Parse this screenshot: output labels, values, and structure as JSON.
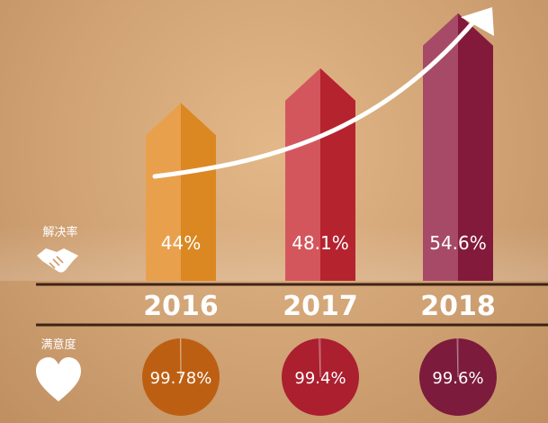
{
  "colors": {
    "divider": "#3e2416",
    "arrow": "#ffffff",
    "year_text": "#ffffff"
  },
  "icons": {
    "resolution": "handshake-icon",
    "satisfaction": "heart-icon"
  },
  "labels": {
    "resolution": "解决率",
    "satisfaction": "满意度"
  },
  "chart_data": [
    {
      "type": "bar",
      "categories": [
        "2016",
        "2017",
        "2018"
      ],
      "ylabel": "解决率",
      "values": [
        44,
        48.1,
        54.6
      ],
      "value_labels": [
        "44%",
        "48.1%",
        "54.6%"
      ],
      "unit": "%",
      "colors": {
        "light": [
          "#e9a04c",
          "#d4565d",
          "#a74a67"
        ],
        "dark": [
          "#db8822",
          "#b5232f",
          "#831a3b"
        ]
      },
      "trend_arrow": true
    },
    {
      "type": "pie",
      "categories": [
        "2016",
        "2017",
        "2018"
      ],
      "ylabel": "满意度",
      "values": [
        99.78,
        99.4,
        99.6
      ],
      "value_labels": [
        "99.78%",
        "99.4%",
        "99.6%"
      ],
      "unit": "%",
      "colors": [
        "#bd5f12",
        "#ab1f2f",
        "#7c1b3b"
      ]
    }
  ]
}
